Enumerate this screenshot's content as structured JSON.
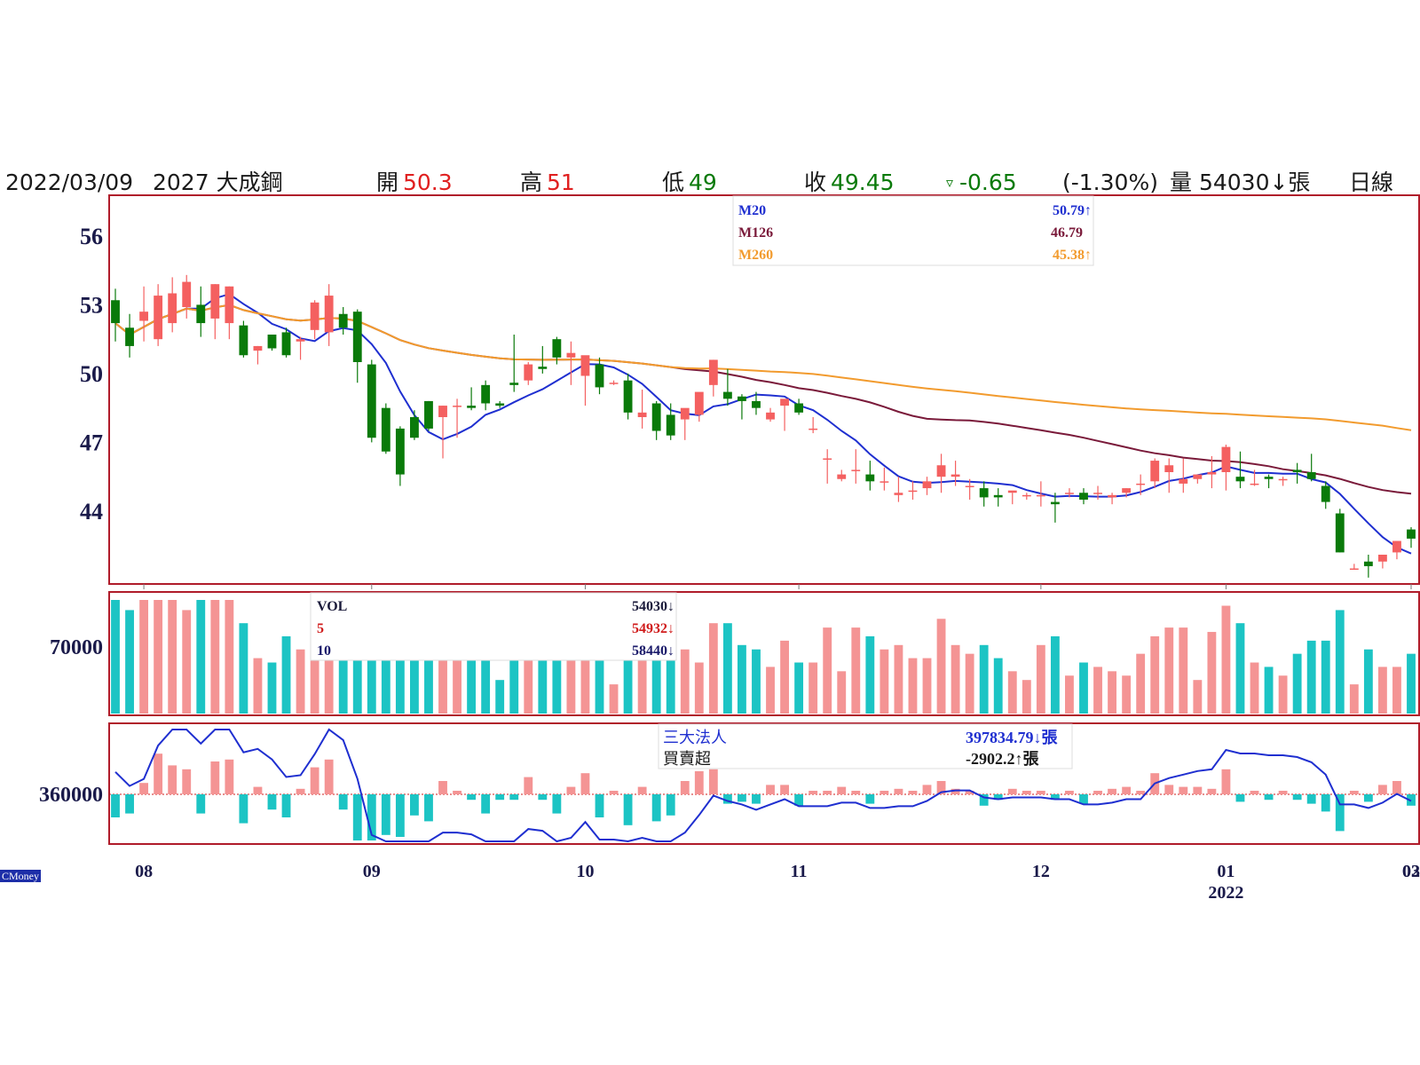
{
  "header": {
    "date": "2022/03/09",
    "stock": "2027 大成鋼",
    "open_label": "開",
    "open_value": "50.3",
    "high_label": "高",
    "high_value": "51",
    "low_label": "低",
    "low_value": "49",
    "close_label": "收",
    "close_value": "49.45",
    "change_symbol": "▿",
    "change": "-0.65",
    "change_pct": "(-1.30%)",
    "volume_text": "量 54030↓張",
    "period": "日線"
  },
  "colors": {
    "up": "#f46060",
    "down": "#0a7a0a",
    "vol_up": "#f49494",
    "vol_down": "#1cc4c4",
    "m20": "#1f2fd0",
    "m126": "#7a1a3a",
    "m260": "#f29b2e",
    "frame": "#b01c2a"
  },
  "ma_legend": [
    {
      "name": "M20",
      "value": "50.79↑",
      "color": "#1f2fd0"
    },
    {
      "name": "M126",
      "value": "46.79",
      "color": "#7a1a3a"
    },
    {
      "name": "M260",
      "value": "45.38↑",
      "color": "#f29b2e"
    }
  ],
  "vol_legend": [
    {
      "name": "VOL",
      "value": "54030↓",
      "color": "#1a1a3a"
    },
    {
      "name": "5",
      "value": "54932↓",
      "color": "#d01c1c"
    },
    {
      "name": "10",
      "value": "58440↓",
      "color": "#1a1a6a"
    }
  ],
  "inst_legend": {
    "name1": "三大法人",
    "value1": "397834.79↓張",
    "name2": "買賣超",
    "value2": "-2902.2↑張"
  },
  "watermark": "CMoney",
  "chart_data": {
    "type": "candlestick",
    "price_axis": {
      "ticks": [
        56,
        53,
        50,
        47,
        44
      ],
      "ylim": [
        40.9,
        57.7
      ]
    },
    "volume_axis": {
      "ticks": [
        70000
      ]
    },
    "inst_axis": {
      "ticks": [
        360000
      ]
    },
    "x_month_labels": [
      "08",
      "09",
      "10",
      "11",
      "12",
      "01",
      "02",
      "03"
    ],
    "x_month_index": [
      2,
      18,
      33,
      48,
      65,
      78,
      92,
      103
    ],
    "year_label": "2022",
    "year_label_index": 78,
    "candles": [
      [
        53.2,
        53.7,
        52.2,
        51.4
      ],
      [
        52.0,
        52.6,
        51.2,
        50.7
      ],
      [
        52.3,
        53.8,
        52.7,
        51.4
      ],
      [
        51.5,
        53.9,
        53.4,
        51.2
      ],
      [
        52.2,
        54.2,
        53.5,
        51.8
      ],
      [
        52.9,
        54.3,
        54.0,
        52.4
      ],
      [
        53.0,
        53.8,
        52.2,
        51.6
      ],
      [
        52.4,
        53.9,
        53.9,
        51.5
      ],
      [
        52.2,
        53.8,
        53.8,
        51.5
      ],
      [
        52.1,
        52.3,
        50.8,
        50.7
      ],
      [
        51.0,
        51.2,
        51.2,
        50.4
      ],
      [
        51.7,
        51.7,
        51.1,
        51.0
      ],
      [
        51.8,
        52.0,
        50.8,
        50.7
      ],
      [
        51.4,
        51.6,
        51.5,
        50.6
      ],
      [
        51.9,
        53.2,
        53.1,
        51.5
      ],
      [
        51.8,
        53.9,
        53.4,
        51.2
      ],
      [
        52.6,
        52.9,
        52.0,
        51.7
      ],
      [
        52.7,
        52.8,
        50.5,
        49.6
      ],
      [
        50.4,
        50.6,
        47.2,
        47.0
      ],
      [
        48.5,
        48.7,
        46.6,
        46.5
      ],
      [
        47.6,
        47.7,
        45.6,
        45.1
      ],
      [
        48.1,
        48.4,
        47.2,
        47.1
      ],
      [
        48.8,
        48.8,
        47.6,
        47.5
      ],
      [
        48.1,
        48.6,
        48.6,
        46.3
      ],
      [
        48.6,
        48.9,
        48.6,
        47.2
      ],
      [
        48.6,
        49.4,
        48.5,
        48.4
      ],
      [
        49.5,
        49.7,
        48.7,
        48.4
      ],
      [
        48.7,
        48.8,
        48.6,
        48.5
      ],
      [
        49.6,
        51.7,
        49.5,
        49.2
      ],
      [
        49.7,
        50.5,
        50.4,
        49.5
      ],
      [
        50.3,
        51.2,
        50.2,
        50.0
      ],
      [
        51.5,
        51.6,
        50.7,
        50.4
      ],
      [
        50.7,
        51.4,
        50.9,
        49.5
      ],
      [
        49.9,
        50.3,
        50.8,
        48.6
      ],
      [
        50.4,
        50.7,
        49.4,
        49.1
      ],
      [
        49.6,
        49.7,
        49.6,
        49.5
      ],
      [
        49.7,
        50.0,
        48.3,
        48.0
      ],
      [
        48.1,
        49.3,
        48.3,
        47.6
      ],
      [
        48.7,
        48.8,
        47.5,
        47.1
      ],
      [
        48.2,
        48.7,
        47.3,
        47.1
      ],
      [
        48.0,
        48.1,
        48.5,
        47.1
      ],
      [
        48.2,
        48.6,
        49.2,
        47.9
      ],
      [
        49.5,
        50.6,
        50.6,
        49.0
      ],
      [
        49.2,
        50.2,
        48.9,
        48.6
      ],
      [
        49.0,
        49.1,
        48.8,
        48.0
      ],
      [
        48.8,
        49.2,
        48.5,
        48.2
      ],
      [
        48.0,
        48.5,
        48.3,
        47.9
      ],
      [
        48.6,
        48.7,
        48.9,
        47.5
      ],
      [
        48.7,
        48.9,
        48.3,
        48.2
      ],
      [
        47.6,
        48.1,
        47.6,
        47.4
      ],
      [
        46.3,
        46.7,
        46.3,
        45.2
      ],
      [
        45.4,
        45.8,
        45.6,
        45.3
      ],
      [
        45.8,
        46.7,
        45.8,
        45.2
      ],
      [
        45.6,
        46.2,
        45.3,
        44.9
      ],
      [
        45.3,
        45.9,
        45.3,
        44.9
      ],
      [
        44.7,
        45.5,
        44.8,
        44.4
      ],
      [
        44.9,
        45.3,
        44.9,
        44.5
      ],
      [
        45.0,
        45.5,
        45.3,
        44.7
      ],
      [
        45.5,
        46.5,
        46.0,
        44.8
      ],
      [
        45.5,
        46.2,
        45.6,
        45.1
      ],
      [
        45.1,
        45.4,
        45.1,
        44.5
      ],
      [
        45.0,
        45.3,
        44.6,
        44.2
      ],
      [
        44.7,
        45.0,
        44.6,
        44.2
      ],
      [
        44.8,
        44.8,
        44.9,
        44.3
      ],
      [
        44.7,
        44.8,
        44.7,
        44.5
      ],
      [
        44.7,
        45.3,
        44.7,
        44.2
      ],
      [
        44.4,
        44.8,
        44.3,
        43.5
      ],
      [
        44.8,
        45.0,
        44.8,
        44.6
      ],
      [
        44.8,
        45.0,
        44.5,
        44.3
      ],
      [
        44.8,
        45.1,
        44.8,
        44.5
      ],
      [
        44.6,
        44.8,
        44.7,
        44.3
      ],
      [
        44.8,
        45.0,
        45.0,
        44.6
      ],
      [
        45.2,
        45.6,
        45.2,
        44.7
      ],
      [
        45.3,
        46.3,
        46.2,
        45.0
      ],
      [
        45.7,
        46.3,
        46.0,
        44.8
      ],
      [
        45.2,
        46.3,
        45.4,
        44.8
      ],
      [
        45.4,
        45.5,
        45.6,
        45.2
      ],
      [
        45.6,
        46.4,
        45.7,
        45.0
      ],
      [
        45.7,
        46.9,
        46.8,
        44.9
      ],
      [
        45.5,
        46.6,
        45.3,
        45.0
      ],
      [
        45.2,
        45.8,
        45.2,
        45.1
      ],
      [
        45.5,
        45.6,
        45.4,
        45.0
      ],
      [
        45.4,
        45.5,
        45.4,
        45.1
      ],
      [
        45.8,
        46.1,
        45.7,
        45.2
      ],
      [
        45.7,
        46.5,
        45.4,
        45.3
      ],
      [
        45.1,
        45.3,
        44.4,
        44.1
      ],
      [
        43.9,
        44.1,
        42.2,
        42.2
      ],
      [
        41.5,
        41.7,
        41.5,
        41.5
      ],
      [
        41.8,
        42.1,
        41.6,
        41.1
      ],
      [
        41.8,
        42.1,
        42.1,
        41.5
      ],
      [
        42.2,
        42.5,
        42.7,
        41.9
      ],
      [
        43.2,
        43.3,
        42.8,
        42.4
      ]
    ],
    "volume": [],
    "institutional": []
  }
}
